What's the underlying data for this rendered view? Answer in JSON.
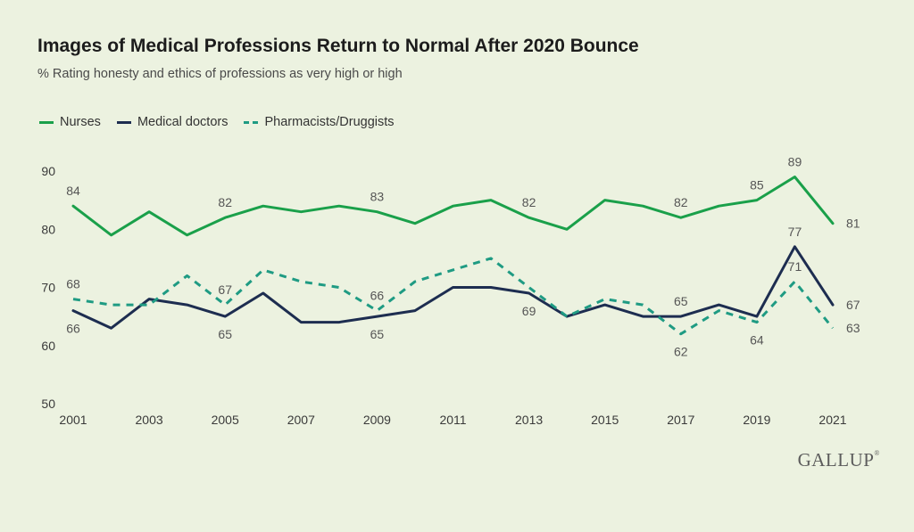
{
  "logo": {
    "text": "GALLUP",
    "mark": "®"
  },
  "chart_data": {
    "type": "line",
    "title": "Images of Medical Professions Return to Normal After 2020 Bounce",
    "subtitle": "% Rating honesty and ethics of professions as very high or high",
    "x": [
      2001,
      2002,
      2003,
      2004,
      2005,
      2006,
      2007,
      2008,
      2009,
      2010,
      2011,
      2012,
      2013,
      2014,
      2015,
      2016,
      2017,
      2018,
      2019,
      2020,
      2021
    ],
    "xticks": [
      "2001",
      "2003",
      "2005",
      "2007",
      "2009",
      "2011",
      "2013",
      "2015",
      "2017",
      "2019",
      "2021"
    ],
    "yticks": [
      "50",
      "60",
      "70",
      "80",
      "90"
    ],
    "ylim": [
      50,
      90
    ],
    "xlabel": "",
    "ylabel": "",
    "legend_position": "top-left",
    "grid": false,
    "series": [
      {
        "name": "Nurses",
        "color": "#1aa04a",
        "style": "solid",
        "values": [
          84,
          79,
          83,
          79,
          82,
          84,
          83,
          84,
          83,
          81,
          84,
          85,
          82,
          80,
          85,
          84,
          82,
          84,
          85,
          89,
          81
        ]
      },
      {
        "name": "Medical doctors",
        "color": "#1d2d50",
        "style": "solid",
        "values": [
          66,
          63,
          68,
          67,
          65,
          69,
          64,
          64,
          65,
          66,
          70,
          70,
          69,
          65,
          67,
          65,
          65,
          67,
          65,
          77,
          67
        ]
      },
      {
        "name": "Pharmacists/Druggists",
        "color": "#1f9b83",
        "style": "dashed",
        "values": [
          68,
          67,
          67,
          72,
          67,
          73,
          71,
          70,
          66,
          71,
          73,
          75,
          70,
          65,
          68,
          67,
          62,
          66,
          64,
          71,
          63
        ]
      }
    ],
    "data_labels": [
      {
        "series": 0,
        "x": 2001,
        "text": "84",
        "pos": "above"
      },
      {
        "series": 0,
        "x": 2005,
        "text": "82",
        "pos": "above"
      },
      {
        "series": 0,
        "x": 2009,
        "text": "83",
        "pos": "above"
      },
      {
        "series": 0,
        "x": 2013,
        "text": "82",
        "pos": "above"
      },
      {
        "series": 0,
        "x": 2017,
        "text": "82",
        "pos": "above"
      },
      {
        "series": 0,
        "x": 2019,
        "text": "85",
        "pos": "above"
      },
      {
        "series": 0,
        "x": 2020,
        "text": "89",
        "pos": "above"
      },
      {
        "series": 0,
        "x": 2021,
        "text": "81",
        "pos": "right"
      },
      {
        "series": 2,
        "x": 2001,
        "text": "68",
        "pos": "above"
      },
      {
        "series": 1,
        "x": 2001,
        "text": "66",
        "pos": "below"
      },
      {
        "series": 2,
        "x": 2005,
        "text": "67",
        "pos": "above"
      },
      {
        "series": 1,
        "x": 2005,
        "text": "65",
        "pos": "below"
      },
      {
        "series": 2,
        "x": 2009,
        "text": "66",
        "pos": "above"
      },
      {
        "series": 1,
        "x": 2009,
        "text": "65",
        "pos": "below"
      },
      {
        "series": 1,
        "x": 2013,
        "text": "69",
        "pos": "below"
      },
      {
        "series": 1,
        "x": 2017,
        "text": "65",
        "pos": "above"
      },
      {
        "series": 2,
        "x": 2017,
        "text": "62",
        "pos": "below"
      },
      {
        "series": 2,
        "x": 2019,
        "text": "64",
        "pos": "below"
      },
      {
        "series": 1,
        "x": 2020,
        "text": "77",
        "pos": "above"
      },
      {
        "series": 2,
        "x": 2020,
        "text": "71",
        "pos": "above"
      },
      {
        "series": 1,
        "x": 2021,
        "text": "67",
        "pos": "right"
      },
      {
        "series": 2,
        "x": 2021,
        "text": "63",
        "pos": "right"
      }
    ]
  }
}
